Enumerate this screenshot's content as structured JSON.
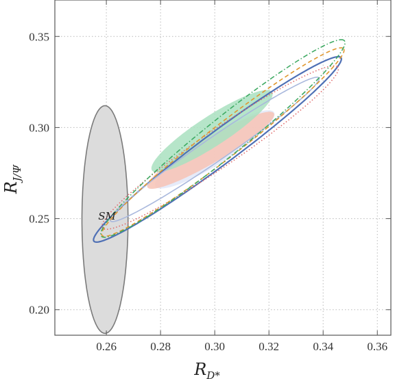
{
  "chart_data": {
    "type": "contour",
    "xlabel": "R",
    "xlabel_sub": "D*",
    "ylabel": "R",
    "ylabel_sub": "J/Ψ",
    "xlim": [
      0.241,
      0.365
    ],
    "ylim": [
      0.186,
      0.37
    ],
    "xticks": [
      0.26,
      0.28,
      0.3,
      0.32,
      0.34,
      0.36
    ],
    "yticks": [
      0.2,
      0.25,
      0.3,
      0.35
    ],
    "xtick_labels": [
      "0.26",
      "0.28",
      "0.30",
      "0.32",
      "0.34",
      "0.36"
    ],
    "ytick_labels": [
      "0.20",
      "0.25",
      "0.30",
      "0.35"
    ],
    "grid": true,
    "annotations": [
      {
        "text": "SM",
        "x": 0.257,
        "y": 0.2495
      }
    ],
    "regions": [
      {
        "id": "sm",
        "kind": "filled",
        "fill": "#dcdcdc",
        "stroke": "#7a7a7a",
        "ellipse": {
          "cx": 0.2595,
          "cy": 0.2495,
          "rx": 0.0085,
          "ry": 0.0625,
          "angle": 0
        }
      },
      {
        "id": "filled-blue",
        "kind": "filled",
        "fill": "#e2e8f8",
        "ellipse": {
          "cx": 0.3,
          "cy": 0.288,
          "rx": 0.03,
          "ry": 0.007,
          "angle": 0.77
        }
      },
      {
        "id": "filled-red",
        "kind": "filled",
        "fill": "#f7c3b5",
        "ellipse": {
          "cx": 0.2985,
          "cy": 0.2875,
          "rx": 0.031,
          "ry": 0.006,
          "angle": 0.73
        }
      },
      {
        "id": "filled-green",
        "kind": "filled",
        "fill": "#a9e1c0",
        "ellipse": {
          "cx": 0.299,
          "cy": 0.298,
          "rx": 0.031,
          "ry": 0.007,
          "angle": 0.79
        }
      },
      {
        "id": "solid-blue-outer",
        "kind": "line",
        "stroke": "#4f70b5",
        "dash": "solid",
        "ellipse": {
          "cx": 0.301,
          "cy": 0.288,
          "rx": 0.068,
          "ry": 0.0075,
          "angle": 0.84
        }
      },
      {
        "id": "light-blue-inner",
        "kind": "line",
        "stroke": "#a9b8dd",
        "dash": "solid",
        "ellipse": {
          "cx": 0.3,
          "cy": 0.288,
          "rx": 0.055,
          "ry": 0.0055,
          "angle": 0.8
        }
      },
      {
        "id": "red-dotted",
        "kind": "line",
        "stroke": "#e06a6a",
        "dash": "dotted",
        "ellipse": {
          "cx": 0.302,
          "cy": 0.289,
          "rx": 0.062,
          "ry": 0.0085,
          "angle": 0.8
        }
      },
      {
        "id": "orange-dashed",
        "kind": "line",
        "stroke": "#e0962d",
        "dash": "dashed",
        "ellipse": {
          "cx": 0.303,
          "cy": 0.292,
          "rx": 0.068,
          "ry": 0.0075,
          "angle": 0.86
        }
      },
      {
        "id": "green-dashdot",
        "kind": "line",
        "stroke": "#3faa63",
        "dash": "dashdot",
        "ellipse": {
          "cx": 0.303,
          "cy": 0.294,
          "rx": 0.07,
          "ry": 0.0085,
          "angle": 0.88
        }
      }
    ]
  }
}
